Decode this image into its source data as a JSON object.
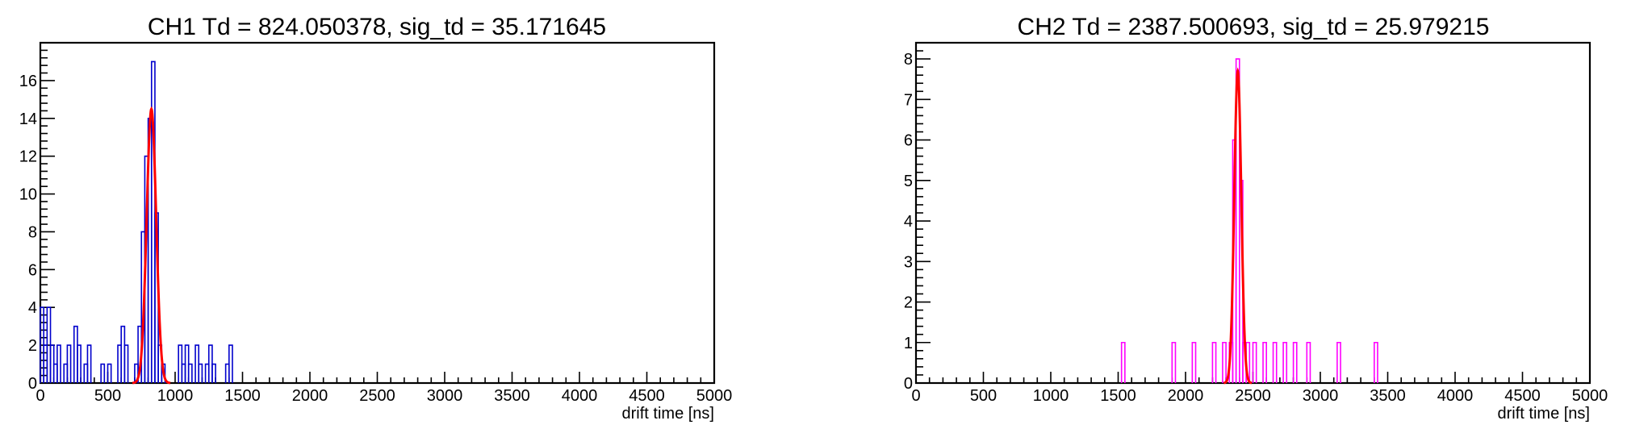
{
  "chart_data": [
    {
      "type": "histogram",
      "title": "CH1 Td = 824.050378, sig_td = 35.171645",
      "xlabel": "drift time [ns]",
      "ylabel": "",
      "xlim": [
        0,
        5000
      ],
      "ylim": [
        0,
        18
      ],
      "x_ticks": [
        0,
        500,
        1000,
        1500,
        2000,
        2500,
        3000,
        3500,
        4000,
        4500,
        5000
      ],
      "y_ticks": [
        0,
        2,
        4,
        6,
        8,
        10,
        12,
        14,
        16
      ],
      "bin_width": 25,
      "hist_color": "#0000cc",
      "fit_color": "#ff0000",
      "bins": [
        [
          0,
          4
        ],
        [
          25,
          2
        ],
        [
          50,
          4
        ],
        [
          75,
          2
        ],
        [
          100,
          1
        ],
        [
          125,
          2
        ],
        [
          150,
          0
        ],
        [
          175,
          1
        ],
        [
          200,
          2
        ],
        [
          225,
          0
        ],
        [
          250,
          3
        ],
        [
          275,
          2
        ],
        [
          300,
          0
        ],
        [
          325,
          1
        ],
        [
          350,
          2
        ],
        [
          375,
          0
        ],
        [
          400,
          0
        ],
        [
          425,
          0
        ],
        [
          450,
          1
        ],
        [
          475,
          0
        ],
        [
          500,
          1
        ],
        [
          525,
          0
        ],
        [
          550,
          0
        ],
        [
          575,
          2
        ],
        [
          600,
          3
        ],
        [
          625,
          2
        ],
        [
          650,
          0
        ],
        [
          675,
          0
        ],
        [
          700,
          1
        ],
        [
          725,
          3
        ],
        [
          750,
          8
        ],
        [
          775,
          12
        ],
        [
          800,
          14
        ],
        [
          825,
          17
        ],
        [
          850,
          9
        ],
        [
          875,
          2
        ],
        [
          900,
          1
        ],
        [
          925,
          0
        ],
        [
          950,
          0
        ],
        [
          975,
          0
        ],
        [
          1000,
          0
        ],
        [
          1025,
          2
        ],
        [
          1050,
          1
        ],
        [
          1075,
          2
        ],
        [
          1100,
          1
        ],
        [
          1125,
          0
        ],
        [
          1150,
          2
        ],
        [
          1175,
          1
        ],
        [
          1200,
          0
        ],
        [
          1225,
          1
        ],
        [
          1250,
          2
        ],
        [
          1275,
          1
        ],
        [
          1300,
          0
        ],
        [
          1325,
          0
        ],
        [
          1350,
          0
        ],
        [
          1375,
          1
        ],
        [
          1400,
          2
        ]
      ],
      "fit": {
        "function": "gaus",
        "mean": 824.050378,
        "sigma": 35.171645,
        "amplitude": 14.5
      }
    },
    {
      "type": "histogram",
      "title": "CH2 Td = 2387.500693, sig_td = 25.979215",
      "xlabel": "drift time [ns]",
      "ylabel": "",
      "xlim": [
        0,
        5000
      ],
      "ylim": [
        0,
        8.4
      ],
      "x_ticks": [
        0,
        500,
        1000,
        1500,
        2000,
        2500,
        3000,
        3500,
        4000,
        4500,
        5000
      ],
      "y_ticks": [
        0,
        1,
        2,
        3,
        4,
        5,
        6,
        7,
        8
      ],
      "bin_width": 25,
      "hist_color": "#ff00ff",
      "fit_color": "#ff0000",
      "bins": [
        [
          1525,
          1
        ],
        [
          1900,
          1
        ],
        [
          2050,
          1
        ],
        [
          2200,
          1
        ],
        [
          2275,
          1
        ],
        [
          2325,
          1
        ],
        [
          2350,
          6
        ],
        [
          2375,
          8
        ],
        [
          2400,
          5
        ],
        [
          2425,
          1
        ],
        [
          2450,
          1
        ],
        [
          2500,
          1
        ],
        [
          2575,
          1
        ],
        [
          2650,
          1
        ],
        [
          2725,
          1
        ],
        [
          2800,
          1
        ],
        [
          2900,
          1
        ],
        [
          3125,
          1
        ],
        [
          3400,
          1
        ]
      ],
      "fit": {
        "function": "gaus",
        "mean": 2387.500693,
        "sigma": 25.979215,
        "amplitude": 7.7
      }
    }
  ]
}
